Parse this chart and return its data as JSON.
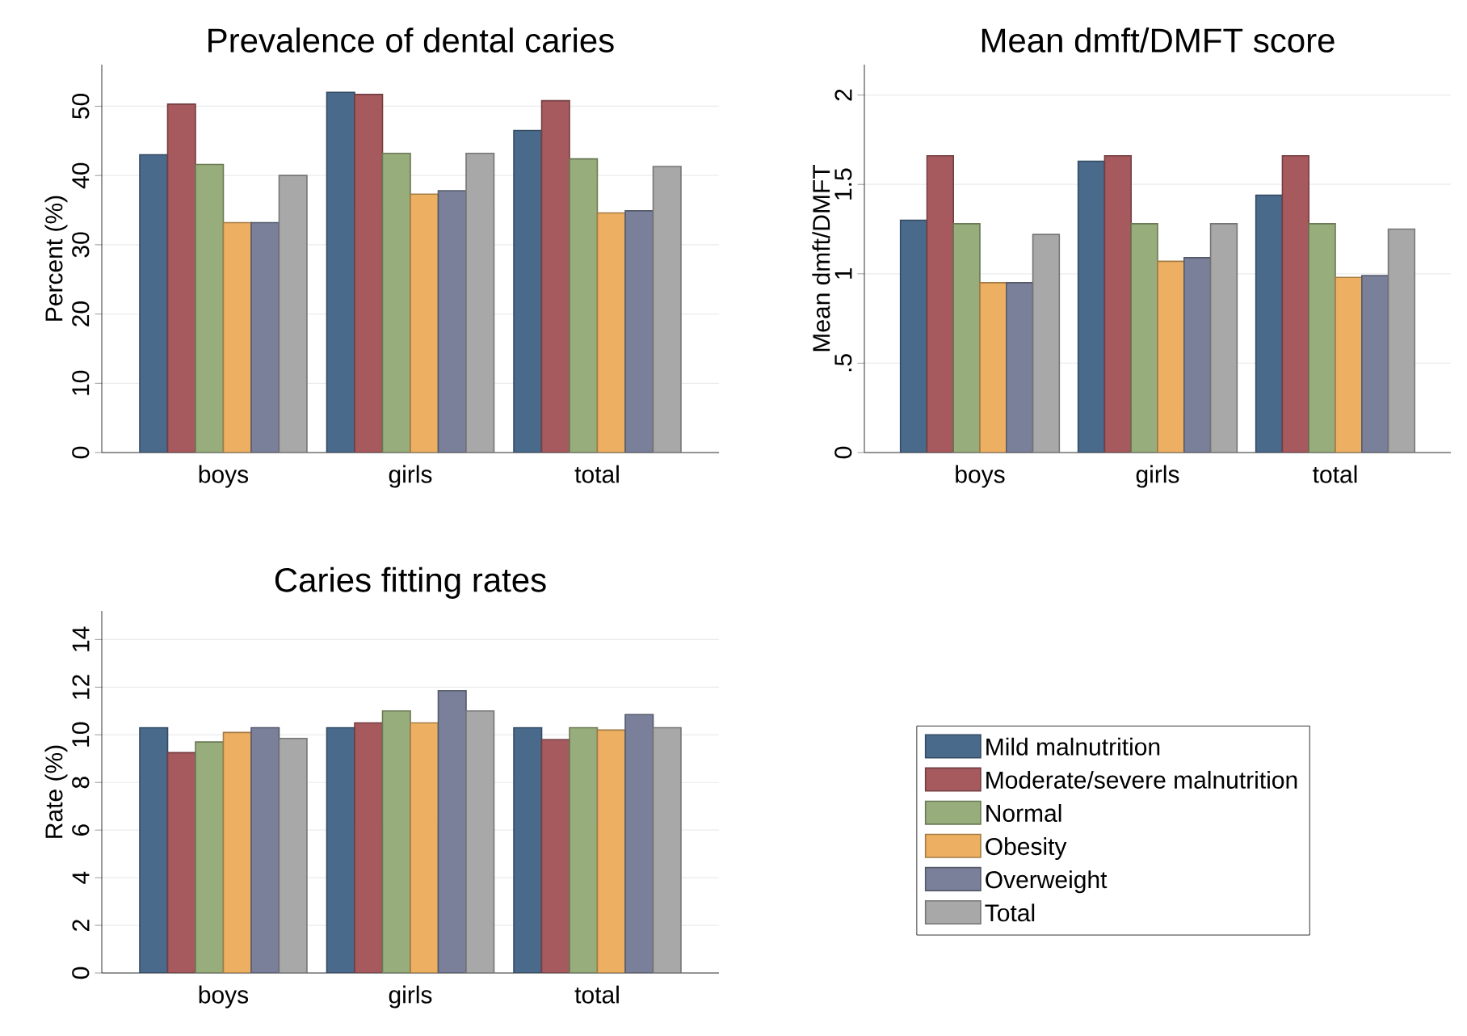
{
  "chart_data": [
    {
      "type": "bar",
      "title": "Prevalence of dental caries",
      "ylabel": "Percent (%)",
      "categories": [
        "boys",
        "girls",
        "total"
      ],
      "ylim": [
        0,
        56
      ],
      "yticks": [
        0,
        10,
        20,
        30,
        40,
        50
      ],
      "grid": "y",
      "series": [
        {
          "color": "#4a6a8c",
          "values": [
            43.0,
            52.0,
            46.5
          ]
        },
        {
          "color": "#a65a5e",
          "values": [
            50.3,
            51.7,
            50.8
          ]
        },
        {
          "color": "#98ad7c",
          "values": [
            41.6,
            43.2,
            42.4
          ]
        },
        {
          "color": "#edb063",
          "values": [
            33.2,
            37.3,
            34.6
          ]
        },
        {
          "color": "#7a809a",
          "values": [
            33.2,
            37.8,
            34.9
          ]
        },
        {
          "color": "#a8a8a8",
          "values": [
            40.0,
            43.2,
            41.3
          ]
        }
      ]
    },
    {
      "type": "bar",
      "title": "Mean dmft/DMFT score",
      "ylabel": "Mean dmft/DMFT",
      "categories": [
        "boys",
        "girls",
        "total"
      ],
      "ylim": [
        0,
        2.17
      ],
      "yticks": [
        0,
        {
          "value": 0.5,
          "label": ".5"
        },
        1,
        1.5,
        2
      ],
      "grid": "y",
      "series": [
        {
          "color": "#4a6a8c",
          "values": [
            1.3,
            1.63,
            1.44
          ]
        },
        {
          "color": "#a65a5e",
          "values": [
            1.66,
            1.66,
            1.66
          ]
        },
        {
          "color": "#98ad7c",
          "values": [
            1.28,
            1.28,
            1.28
          ]
        },
        {
          "color": "#edb063",
          "values": [
            0.95,
            1.07,
            0.98
          ]
        },
        {
          "color": "#7a809a",
          "values": [
            0.95,
            1.09,
            0.99
          ]
        },
        {
          "color": "#a8a8a8",
          "values": [
            1.22,
            1.28,
            1.25
          ]
        }
      ]
    },
    {
      "type": "bar",
      "title": "Caries fitting rates",
      "ylabel": "Rate (%)",
      "categories": [
        "boys",
        "girls",
        "total"
      ],
      "ylim": [
        0,
        15.2
      ],
      "yticks": [
        0,
        2,
        4,
        6,
        8,
        10,
        12,
        14
      ],
      "grid": "y",
      "legend": "right",
      "series": [
        {
          "name": "Mild malnutrition",
          "color": "#4a6a8c",
          "values": [
            10.3,
            10.3,
            10.3
          ]
        },
        {
          "name": "Moderate/severe malnutrition",
          "color": "#a65a5e",
          "values": [
            9.25,
            10.5,
            9.8
          ]
        },
        {
          "name": "Normal",
          "color": "#98ad7c",
          "values": [
            9.7,
            11.0,
            10.3
          ]
        },
        {
          "name": "Obesity",
          "color": "#edb063",
          "values": [
            10.1,
            10.5,
            10.2
          ]
        },
        {
          "name": "Overweight",
          "color": "#7a809a",
          "values": [
            10.3,
            11.85,
            10.85
          ]
        },
        {
          "name": "Total",
          "color": "#a8a8a8",
          "values": [
            9.85,
            11.0,
            10.3
          ]
        }
      ]
    }
  ]
}
